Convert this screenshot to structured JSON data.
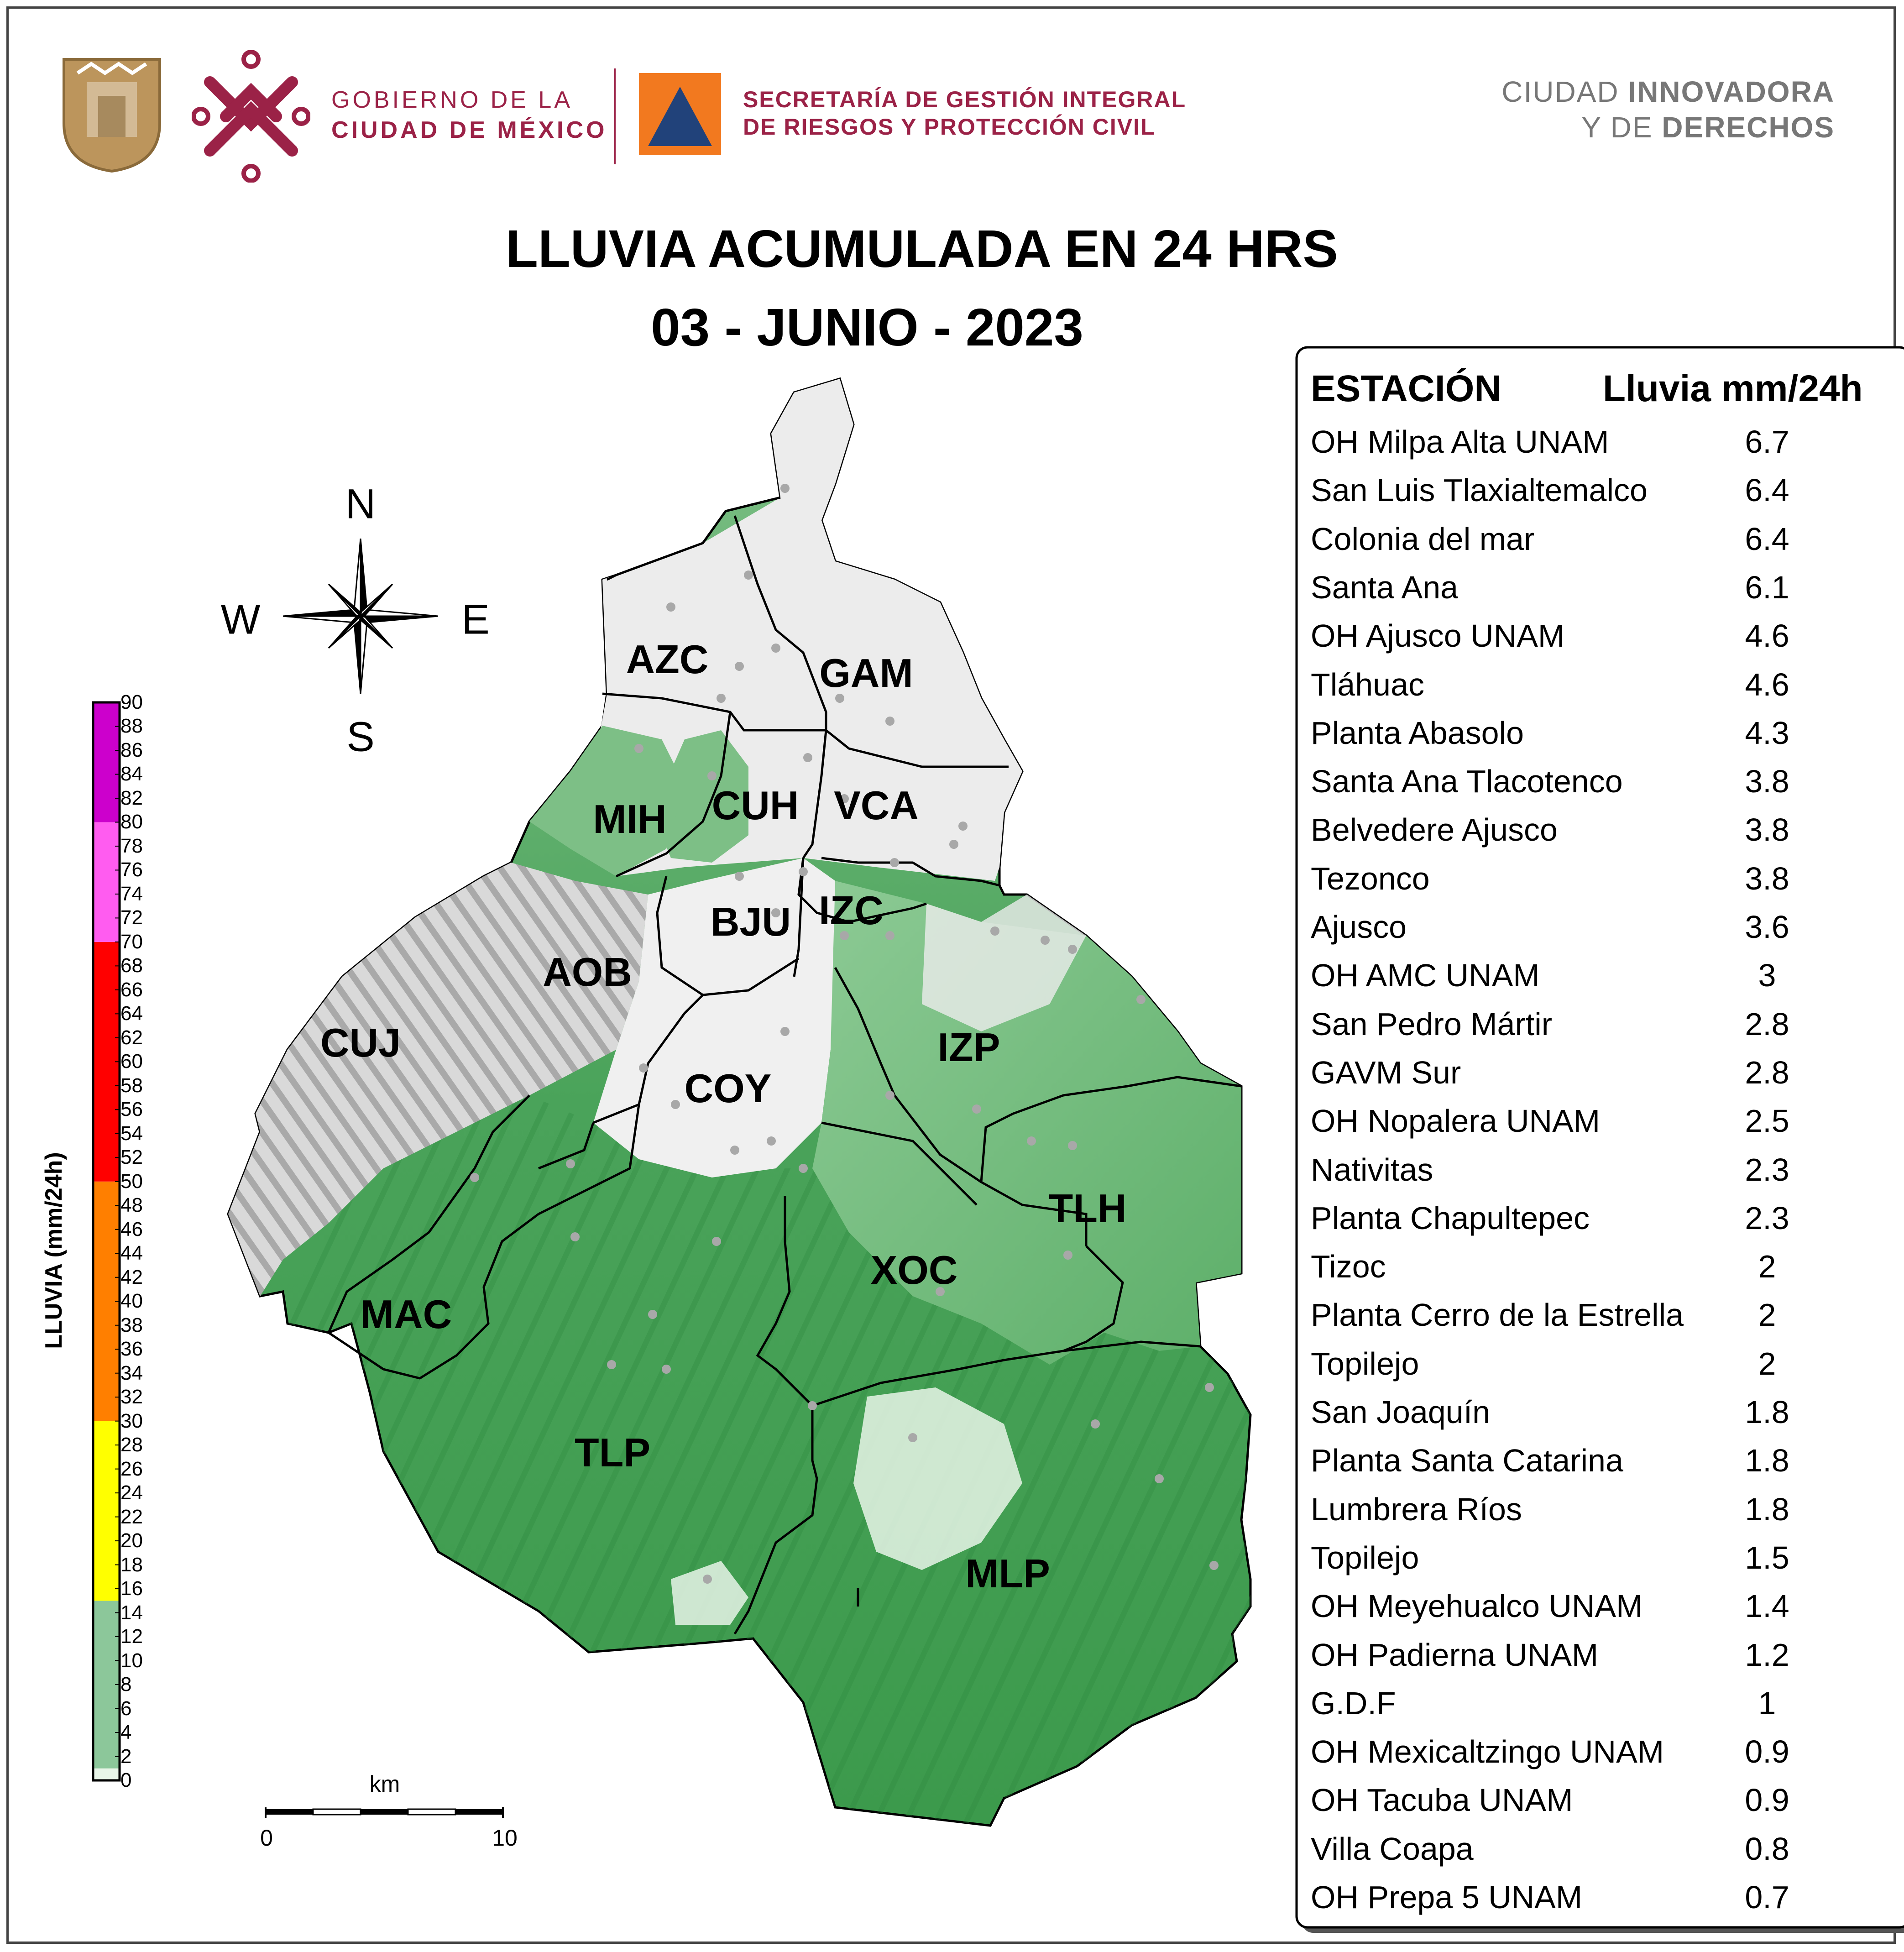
{
  "header": {
    "gov_line1": "GOBIERNO DE LA",
    "gov_line2": "CIUDAD DE MÉXICO",
    "sec_line1": "SECRETARÍA DE GESTIÓN INTEGRAL",
    "sec_line2": "DE RIESGOS Y PROTECCIÓN CIVIL",
    "ciudad_a": "CIUDAD ",
    "ciudad_b": "INNOVADORA",
    "ciudad_c": "Y DE ",
    "ciudad_d": "DERECHOS",
    "icons": [
      "coat-of-arms-icon",
      "cdmx-logo-icon",
      "civil-protection-triangle-icon"
    ]
  },
  "title": {
    "line1": "LLUVIA ACUMULADA EN 24 HRS",
    "line2": "03 - JUNIO - 2023"
  },
  "compass": {
    "n": "N",
    "s": "S",
    "e": "E",
    "w": "W"
  },
  "colorbar": {
    "label": "LLUVIA (mm/24h)",
    "ticks": [
      "90",
      "88",
      "86",
      "84",
      "82",
      "80",
      "78",
      "76",
      "74",
      "72",
      "70",
      "68",
      "66",
      "64",
      "62",
      "60",
      "58",
      "56",
      "54",
      "52",
      "50",
      "48",
      "46",
      "44",
      "42",
      "40",
      "38",
      "36",
      "34",
      "32",
      "30",
      "28",
      "26",
      "24",
      "22",
      "20",
      "18",
      "16",
      "14",
      "12",
      "10",
      "8",
      "6",
      "4",
      "2",
      "0"
    ],
    "bands": [
      {
        "from": 0,
        "to": 1,
        "color": "#e8f5e8"
      },
      {
        "from": 1,
        "to": 15,
        "color": "#8cc79a"
      },
      {
        "from": 15,
        "to": 30,
        "color": "#ffff00"
      },
      {
        "from": 30,
        "to": 50,
        "color": "#ff7f00"
      },
      {
        "from": 50,
        "to": 70,
        "color": "#ff0000"
      },
      {
        "from": 70,
        "to": 80,
        "color": "#ff5cf0"
      },
      {
        "from": 80,
        "to": 90,
        "color": "#cc00cc"
      }
    ]
  },
  "scale_bar": {
    "unit": "km",
    "start": "0",
    "end": "10"
  },
  "map": {
    "alcaldias": [
      "AZC",
      "GAM",
      "MIH",
      "CUH",
      "VCA",
      "BJU",
      "IZC",
      "AOB",
      "CUJ",
      "COY",
      "IZP",
      "TLH",
      "XOC",
      "MAC",
      "TLP",
      "MLP"
    ],
    "colors": {
      "boundary": "#000000",
      "station": "#a8a8a8",
      "relief": "#d6d6d6",
      "rain_low": "#e8f5e8",
      "rain_mid": "#3a9a4a"
    }
  },
  "table": {
    "header_station": "ESTACIÓN",
    "header_rain": "Lluvia mm/24h",
    "rows": [
      {
        "station": "OH Milpa Alta UNAM",
        "value": "6.7"
      },
      {
        "station": "San Luis Tlaxialtemalco",
        "value": "6.4"
      },
      {
        "station": "Colonia del mar",
        "value": "6.4"
      },
      {
        "station": "Santa Ana",
        "value": "6.1"
      },
      {
        "station": "OH Ajusco UNAM",
        "value": "4.6"
      },
      {
        "station": "Tláhuac",
        "value": "4.6"
      },
      {
        "station": "Planta Abasolo",
        "value": "4.3"
      },
      {
        "station": "Santa Ana Tlacotenco",
        "value": "3.8"
      },
      {
        "station": "Belvedere Ajusco",
        "value": "3.8"
      },
      {
        "station": "Tezonco",
        "value": "3.8"
      },
      {
        "station": "Ajusco",
        "value": "3.6"
      },
      {
        "station": "OH AMC UNAM",
        "value": "3"
      },
      {
        "station": "San Pedro Mártir",
        "value": "2.8"
      },
      {
        "station": "GAVM Sur",
        "value": "2.8"
      },
      {
        "station": "OH Nopalera UNAM",
        "value": "2.5"
      },
      {
        "station": "Nativitas",
        "value": "2.3"
      },
      {
        "station": "Planta Chapultepec",
        "value": "2.3"
      },
      {
        "station": "Tizoc",
        "value": "2"
      },
      {
        "station": "Planta Cerro de la Estrella",
        "value": "2"
      },
      {
        "station": "Topilejo",
        "value": "2"
      },
      {
        "station": "San Joaquín",
        "value": "1.8"
      },
      {
        "station": "Planta Santa Catarina",
        "value": "1.8"
      },
      {
        "station": "Lumbrera Ríos",
        "value": "1.8"
      },
      {
        "station": "Topilejo",
        "value": "1.5"
      },
      {
        "station": "OH Meyehualco UNAM",
        "value": "1.4"
      },
      {
        "station": "OH Padierna UNAM",
        "value": "1.2"
      },
      {
        "station": "G.D.F",
        "value": "1"
      },
      {
        "station": "OH Mexicaltzingo UNAM",
        "value": "0.9"
      },
      {
        "station": "OH Tacuba UNAM",
        "value": "0.9"
      },
      {
        "station": "Villa Coapa",
        "value": "0.8"
      },
      {
        "station": "OH Prepa 5 UNAM",
        "value": "0.7"
      }
    ]
  }
}
